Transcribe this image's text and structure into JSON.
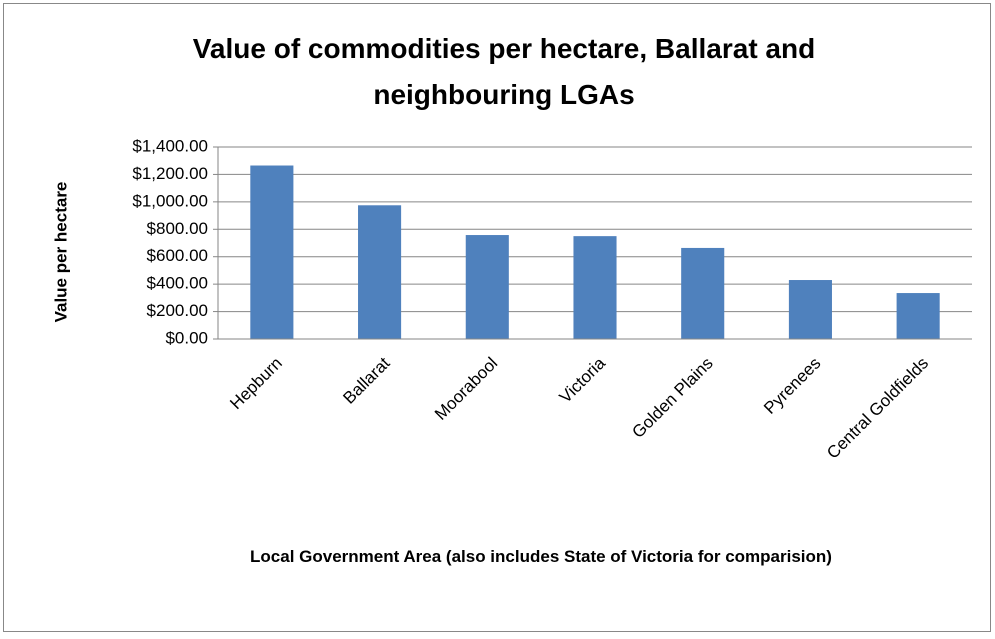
{
  "chart_data": {
    "type": "bar",
    "title": "Value of commodities per hectare, Ballarat and neighbouring LGAs",
    "xlabel": "Local Government Area (also includes State of Victoria for comparision)",
    "ylabel": "Value per hectare",
    "categories": [
      "Hepburn",
      "Ballarat",
      "Moorabool",
      "Victoria",
      "Golden Plains",
      "Pyrenees",
      "Central Goldfields"
    ],
    "values": [
      1265,
      975,
      758,
      750,
      664,
      430,
      335
    ],
    "color": "#4f81bd",
    "ylim": [
      0,
      1400
    ],
    "yticks": [
      {
        "value": 0,
        "label": "$0.00"
      },
      {
        "value": 200,
        "label": "$200.00"
      },
      {
        "value": 400,
        "label": "$400.00"
      },
      {
        "value": 600,
        "label": "$600.00"
      },
      {
        "value": 800,
        "label": "$800.00"
      },
      {
        "value": 1000,
        "label": "$1,000.00"
      },
      {
        "value": 1200,
        "label": "$1,200.00"
      },
      {
        "value": 1400,
        "label": "$1,400.00"
      }
    ],
    "grid": true
  }
}
